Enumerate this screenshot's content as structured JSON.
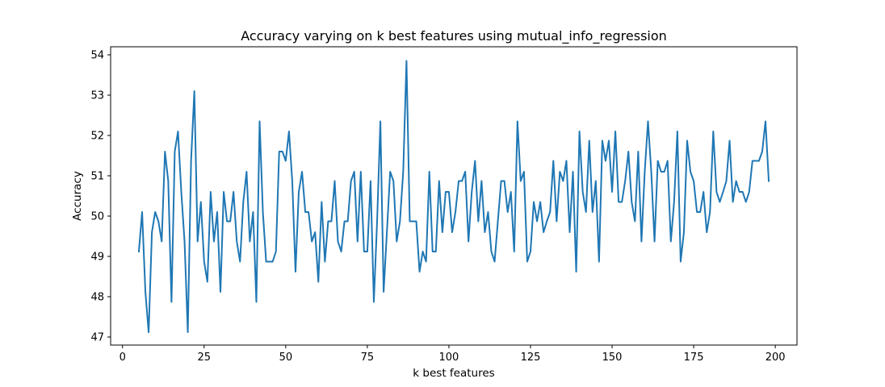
{
  "chart_data": {
    "type": "line",
    "title": "Accuracy varying on k best features using mutual_info_regression",
    "xlabel": "k best features",
    "ylabel": "Accuracy",
    "xlim": [
      -3.65,
      206.65
    ],
    "ylim": [
      46.8,
      54.2
    ],
    "xticks": [
      0,
      25,
      50,
      75,
      100,
      125,
      150,
      175,
      200
    ],
    "yticks": [
      47,
      48,
      49,
      50,
      51,
      52,
      53,
      54
    ],
    "grid": false,
    "line_color": "#1f77b4",
    "series": [
      {
        "x_start": 5,
        "x_step": 1,
        "values": [
          49.12,
          50.1,
          48.12,
          47.12,
          49.6,
          50.1,
          49.87,
          49.37,
          51.6,
          50.87,
          47.87,
          51.6,
          52.1,
          50.6,
          49.37,
          47.12,
          51.37,
          53.1,
          49.37,
          50.35,
          48.87,
          48.37,
          50.6,
          49.37,
          50.1,
          48.12,
          50.6,
          49.87,
          49.87,
          50.6,
          49.37,
          48.87,
          50.35,
          51.1,
          49.37,
          50.1,
          47.87,
          52.35,
          50.1,
          48.87,
          48.87,
          48.87,
          49.12,
          51.6,
          51.6,
          51.37,
          52.1,
          50.87,
          48.62,
          50.6,
          51.1,
          50.1,
          50.1,
          49.37,
          49.6,
          48.37,
          50.35,
          48.87,
          49.87,
          49.87,
          50.87,
          49.37,
          49.12,
          49.87,
          49.87,
          50.87,
          51.1,
          49.37,
          51.1,
          49.12,
          49.12,
          50.87,
          47.87,
          49.87,
          52.35,
          48.12,
          49.6,
          51.1,
          50.87,
          49.37,
          49.87,
          51.1,
          53.85,
          49.87,
          49.87,
          49.87,
          48.62,
          49.12,
          48.87,
          51.1,
          49.12,
          49.12,
          50.87,
          49.6,
          50.6,
          50.6,
          49.6,
          50.1,
          50.87,
          50.87,
          51.1,
          49.37,
          50.6,
          51.37,
          49.87,
          50.87,
          49.6,
          50.1,
          49.12,
          48.87,
          49.87,
          50.87,
          50.87,
          50.1,
          50.6,
          49.12,
          52.35,
          50.87,
          51.1,
          48.87,
          49.12,
          50.35,
          49.87,
          50.35,
          49.6,
          49.87,
          50.1,
          51.37,
          49.87,
          51.1,
          50.87,
          51.37,
          49.6,
          51.1,
          48.62,
          52.1,
          50.6,
          50.1,
          51.87,
          50.1,
          50.87,
          48.87,
          51.87,
          51.37,
          51.87,
          50.6,
          52.1,
          50.35,
          50.35,
          50.87,
          51.6,
          50.35,
          49.87,
          51.6,
          49.37,
          51.1,
          52.35,
          51.1,
          49.37,
          51.37,
          51.1,
          51.1,
          51.37,
          49.37,
          50.35,
          52.1,
          48.87,
          49.6,
          51.87,
          51.1,
          50.87,
          50.1,
          50.1,
          50.6,
          49.6,
          50.1,
          52.1,
          50.6,
          50.35,
          50.6,
          50.87,
          51.87,
          50.35,
          50.87,
          50.6,
          50.6,
          50.35,
          50.6,
          51.37,
          51.37,
          51.37,
          51.6,
          52.35,
          50.87
        ]
      }
    ]
  }
}
